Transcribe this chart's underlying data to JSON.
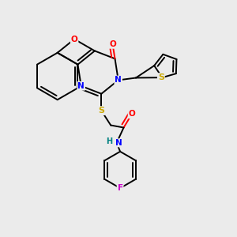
{
  "background_color": "#ebebeb",
  "atom_colors": {
    "C": "#000000",
    "N": "#0000ff",
    "O": "#ff0000",
    "S": "#ccaa00",
    "F": "#cc00cc",
    "H": "#008080"
  },
  "line_color": "#000000",
  "line_width": 1.4,
  "figsize": [
    3.0,
    3.0
  ],
  "dpi": 100
}
